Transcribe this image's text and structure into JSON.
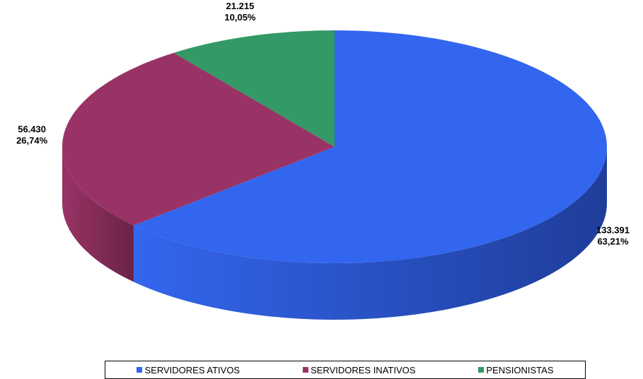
{
  "chart_data": {
    "type": "pie",
    "title": "",
    "slices": [
      {
        "name": "SERVIDORES ATIVOS",
        "value": 133391,
        "value_label": "133.391",
        "percent_label": "63,21%",
        "color": "#3366ee",
        "side_color": "#1f3d9a"
      },
      {
        "name": "SERVIDORES INATIVOS",
        "value": 56430,
        "value_label": "56.430",
        "percent_label": "26,74%",
        "color": "#993366",
        "side_color": "#6a2345"
      },
      {
        "name": "PENSIONISTAS",
        "value": 21215,
        "value_label": "21.215",
        "percent_label": "10,05%",
        "color": "#339966",
        "side_color": "#236b47"
      }
    ],
    "legend_placement": "bottom"
  }
}
